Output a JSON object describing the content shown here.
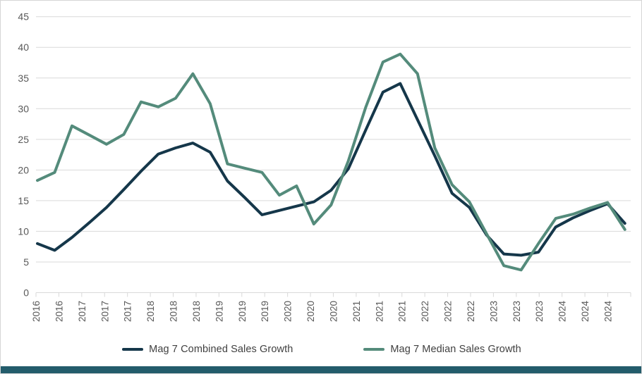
{
  "chart_data": {
    "type": "line",
    "title": "",
    "xlabel": "",
    "ylabel": "",
    "ylim": [
      0,
      45
    ],
    "y_ticks": [
      0,
      5,
      10,
      15,
      20,
      25,
      30,
      35,
      40,
      45
    ],
    "grid": "horizontal",
    "legend_position": "bottom",
    "x_axis_labels": [
      "2016",
      "2016",
      "2017",
      "2017",
      "2017",
      "2018",
      "2018",
      "2018",
      "2019",
      "2019",
      "2019",
      "2020",
      "2020",
      "2020",
      "2021",
      "2021",
      "2021",
      "2022",
      "2022",
      "2022",
      "2023",
      "2023",
      "2023",
      "2024",
      "2024",
      "2024"
    ],
    "series": [
      {
        "name": "Mag 7 Combined Sales Growth",
        "color": "#15374a",
        "values": [
          8.0,
          6.9,
          9.0,
          11.4,
          13.9,
          16.8,
          19.8,
          22.6,
          23.6,
          24.4,
          22.9,
          18.2,
          15.5,
          12.7,
          13.4,
          14.1,
          14.8,
          16.7,
          20.2,
          26.5,
          32.7,
          34.1,
          28.2,
          22.3,
          16.2,
          13.9,
          9.4,
          6.3,
          6.1,
          6.6,
          10.7,
          12.2,
          13.4,
          14.5,
          11.3
        ]
      },
      {
        "name": "Mag 7 Median Sales Growth",
        "color": "#548b7b",
        "values": [
          18.3,
          19.6,
          27.2,
          25.7,
          24.2,
          25.8,
          31.1,
          30.3,
          31.7,
          35.7,
          30.8,
          21.0,
          20.3,
          19.6,
          15.9,
          17.4,
          11.2,
          14.3,
          21.5,
          30.2,
          37.6,
          38.9,
          35.7,
          23.6,
          17.6,
          14.8,
          9.6,
          4.4,
          3.7,
          8.0,
          12.1,
          12.8,
          13.8,
          14.7,
          10.3
        ]
      }
    ]
  },
  "style": {
    "gridline_color": "#d9d9d9",
    "tick_color": "#d9d9d9",
    "axis_label_color": "#595959",
    "legend_text_color": "#404040",
    "bottom_bar_color": "#235c6b"
  }
}
